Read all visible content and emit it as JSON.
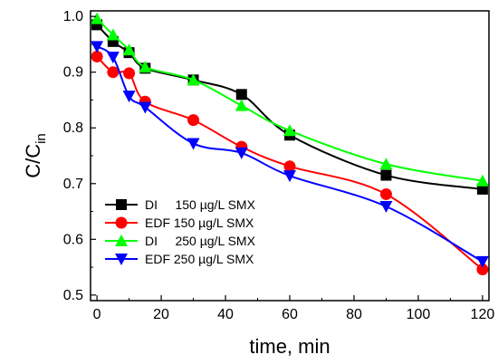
{
  "chart_data": {
    "type": "line",
    "title": "",
    "xlabel": "time, min",
    "ylabel_main": "C/C",
    "ylabel_sub": "in",
    "xlim": [
      -2,
      122
    ],
    "ylim": [
      0.49,
      1.01
    ],
    "xticks": [
      0,
      20,
      40,
      60,
      80,
      100,
      120
    ],
    "yticks": [
      0.5,
      0.6,
      0.7,
      0.8,
      0.9,
      1.0
    ],
    "ytick_labels": [
      "0.5",
      "0.6",
      "0.7",
      "0.8",
      "0.9",
      "1.0"
    ],
    "grid": false,
    "legend_position": "bottom-left",
    "series": [
      {
        "name": "DI     150 µg/L SMX",
        "color": "#000000",
        "marker": "square",
        "x": [
          0,
          5,
          10,
          15,
          30,
          45,
          60,
          90,
          120
        ],
        "y": [
          0.985,
          0.955,
          0.935,
          0.907,
          0.886,
          0.86,
          0.787,
          0.715,
          0.69
        ]
      },
      {
        "name": "EDF 150 µg/L SMX",
        "color": "#ff0000",
        "marker": "circle",
        "x": [
          0,
          5,
          10,
          15,
          30,
          45,
          60,
          90,
          120
        ],
        "y": [
          0.928,
          0.9,
          0.898,
          0.847,
          0.814,
          0.766,
          0.731,
          0.681,
          0.546
        ]
      },
      {
        "name": "DI     250 µg/L SMX",
        "color": "#00ff00",
        "marker": "triangle-up",
        "x": [
          0,
          5,
          10,
          15,
          30,
          45,
          60,
          90,
          120
        ],
        "y": [
          0.996,
          0.967,
          0.94,
          0.909,
          0.886,
          0.84,
          0.795,
          0.735,
          0.705
        ]
      },
      {
        "name": "EDF 250 µg/L SMX",
        "color": "#0000ff",
        "marker": "triangle-down",
        "x": [
          0,
          5,
          10,
          15,
          30,
          45,
          60,
          90,
          120
        ],
        "y": [
          0.946,
          0.927,
          0.857,
          0.837,
          0.772,
          0.755,
          0.714,
          0.659,
          0.56
        ]
      }
    ]
  }
}
